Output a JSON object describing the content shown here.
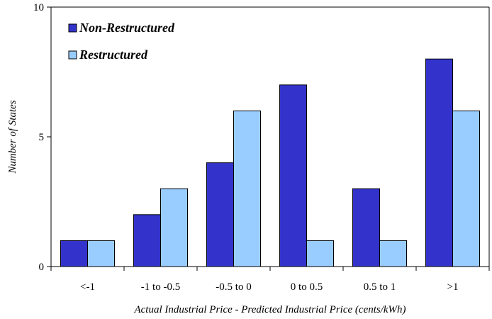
{
  "chart_data": {
    "type": "bar",
    "categories": [
      "<-1",
      "-1 to -0.5",
      "-0.5 to 0",
      "0 to 0.5",
      "0.5 to 1",
      ">1"
    ],
    "series": [
      {
        "name": "Non-Restructured",
        "values": [
          1,
          2,
          4,
          7,
          3,
          8
        ],
        "color": "#3333cc"
      },
      {
        "name": "Restructured",
        "values": [
          1,
          3,
          6,
          1,
          1,
          6
        ],
        "color": "#99ccff"
      }
    ],
    "title": "",
    "xlabel": "Actual Industrial Price - Predicted Industrial Price (cents/kWh)",
    "ylabel": "Number of States",
    "ylim": [
      0,
      10
    ],
    "yticks": [
      0,
      5,
      10
    ],
    "grid": false,
    "legend_position": "top-left"
  }
}
